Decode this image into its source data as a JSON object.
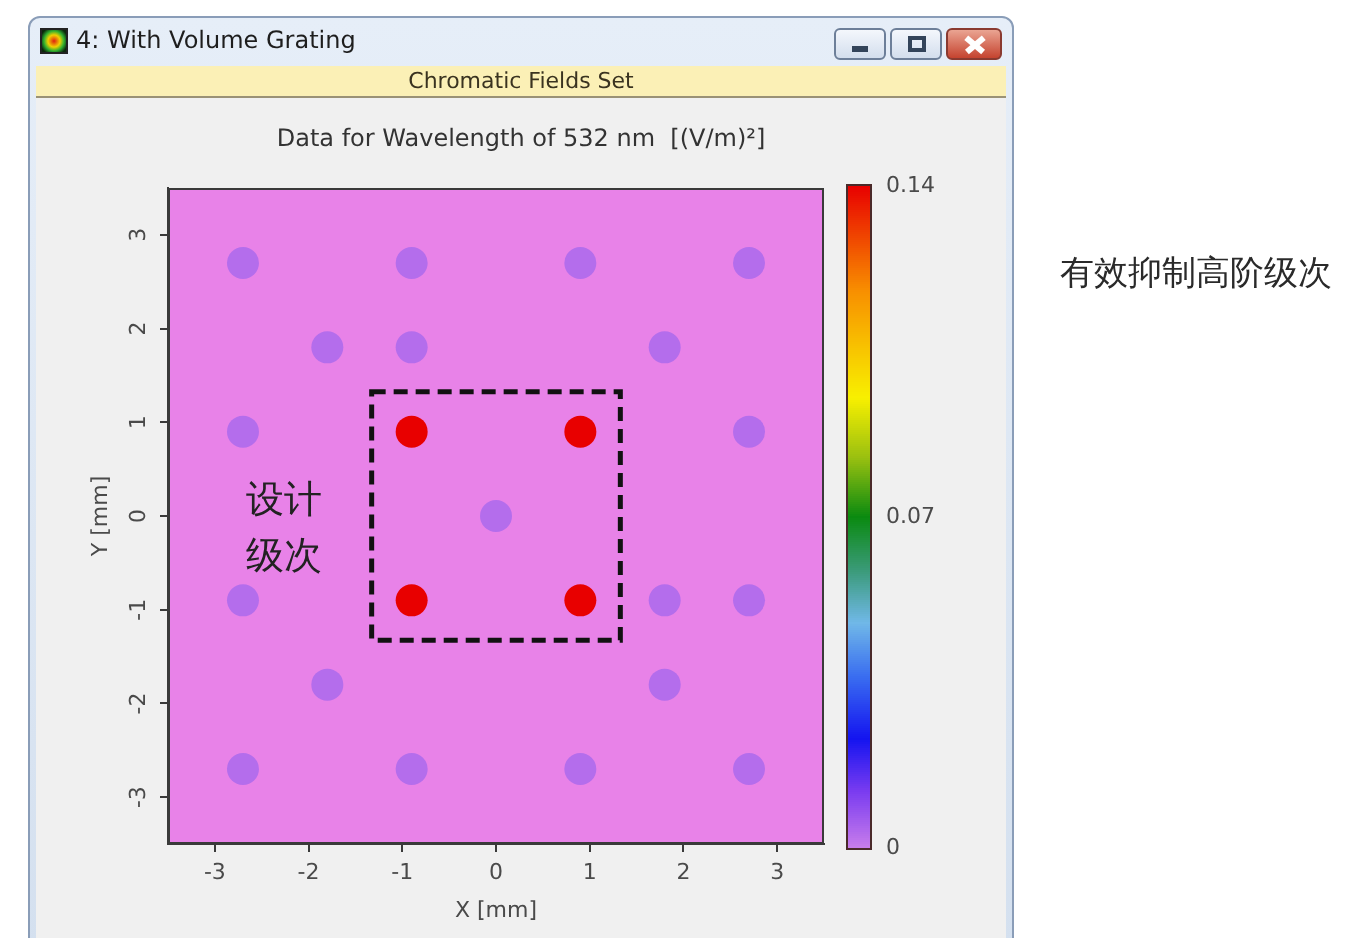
{
  "chart_data": {
    "type": "scatter",
    "title": "Data for Wavelength of 532 nm  [(V/m)²]",
    "xlabel": "X [mm]",
    "ylabel": "Y [mm]",
    "x": [
      -0.9,
      0.9,
      -0.9,
      0.9,
      -2.7,
      -0.9,
      0.9,
      2.7,
      -1.8,
      -0.9,
      1.8,
      -2.7,
      2.7,
      0,
      -2.7,
      1.8,
      2.7,
      -1.8,
      1.8,
      -2.7,
      -0.9,
      0.9,
      2.7
    ],
    "values": [
      0.9,
      0.9,
      -0.9,
      -0.9,
      2.7,
      2.7,
      2.7,
      2.7,
      1.8,
      1.8,
      1.8,
      0.9,
      0.9,
      0,
      -0.9,
      -0.9,
      -0.9,
      -1.8,
      -1.8,
      -2.7,
      -2.7,
      -2.7,
      -2.7
    ],
    "cvalues": [
      0.14,
      0.14,
      0.14,
      0.14,
      0.003,
      0.003,
      0.003,
      0.003,
      0.003,
      0.003,
      0.003,
      0.003,
      0.003,
      0.003,
      0.003,
      0.003,
      0.003,
      0.003,
      0.003,
      0.003,
      0.003,
      0.003,
      0.003
    ],
    "clim": [
      0,
      0.14
    ],
    "cticks": [
      0,
      0.07,
      0.14
    ],
    "xlim": [
      -3.5,
      3.5
    ],
    "ylim": [
      -3.5,
      3.5
    ],
    "xticks": [
      -3,
      -2,
      -1,
      0,
      1,
      2,
      3
    ],
    "yticks": [
      -3,
      -2,
      -1,
      0,
      1,
      2,
      3
    ],
    "marker": "circle",
    "annotations": [
      "4: With Volume Grating",
      "Chromatic Fields Set",
      "设计级次",
      "有效抑制高阶级次"
    ]
  }
}
